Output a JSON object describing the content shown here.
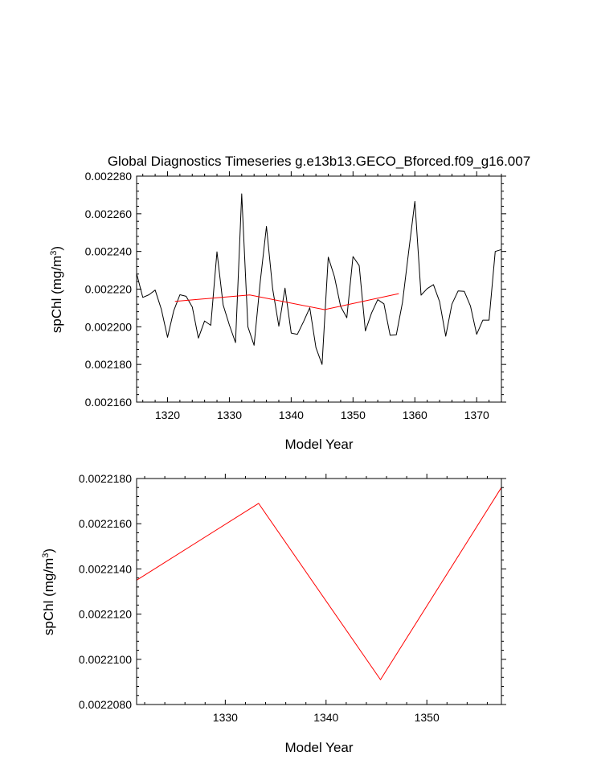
{
  "chart_data": [
    {
      "type": "line",
      "title": "Global Diagnostics Timeseries g.e13b13.GECO_Bforced.f09_g16.007",
      "xlabel": "Model Year",
      "ylabel": "spChl (mg/m^3)",
      "ylabel_parts": {
        "base": "spChl (mg/m",
        "sup": "3",
        "end": ")"
      },
      "xlim": [
        1315,
        1374
      ],
      "ylim": [
        0.00216,
        0.00228
      ],
      "xticks": [
        1320,
        1330,
        1340,
        1350,
        1360,
        1370
      ],
      "xtick_labels": [
        "1320",
        "1330",
        "1340",
        "1350",
        "1360",
        "1370"
      ],
      "yticks": [
        0.00216,
        0.00218,
        0.0022,
        0.00222,
        0.00224,
        0.00226,
        0.00228
      ],
      "ytick_labels": [
        "0.002160",
        "0.002180",
        "0.002200",
        "0.002220",
        "0.002240",
        "0.002260",
        "0.002280"
      ],
      "series": [
        {
          "color": "#000000",
          "x": [
            1315,
            1316,
            1317,
            1318,
            1319,
            1320,
            1321,
            1322,
            1323,
            1324,
            1325,
            1326,
            1327,
            1328,
            1329,
            1330,
            1331,
            1332,
            1333,
            1334,
            1335,
            1336,
            1337,
            1338,
            1339,
            1340,
            1341,
            1342,
            1343,
            1344,
            1345,
            1346,
            1347,
            1348,
            1349,
            1350,
            1351,
            1352,
            1353,
            1354,
            1355,
            1356,
            1357,
            1358,
            1359,
            1360,
            1361,
            1362,
            1363,
            1364,
            1365,
            1366,
            1367,
            1368,
            1369,
            1370,
            1371,
            1372,
            1373,
            1374
          ],
          "y": [
            0.0022283,
            0.0022156,
            0.002217,
            0.0022195,
            0.0022093,
            0.0021944,
            0.0022085,
            0.002217,
            0.0022162,
            0.0022105,
            0.002194,
            0.0022031,
            0.0022008,
            0.0022398,
            0.0022116,
            0.002201,
            0.0021916,
            0.0022706,
            0.0022,
            0.0021902,
            0.002224,
            0.0022533,
            0.0022202,
            0.0022003,
            0.0022205,
            0.0021967,
            0.002196,
            0.0022028,
            0.0022101,
            0.0021889,
            0.00218,
            0.002237,
            0.0022266,
            0.0022108,
            0.0022048,
            0.0022373,
            0.0022325,
            0.0021978,
            0.0022073,
            0.0022144,
            0.0022122,
            0.0021955,
            0.0021957,
            0.002213,
            0.00224,
            0.0022666,
            0.0022168,
            0.0022203,
            0.0022224,
            0.0022133,
            0.002195,
            0.002212,
            0.002219,
            0.0022188,
            0.002211,
            0.002196,
            0.0022035,
            0.0022035,
            0.00224,
            0.002241
          ]
        },
        {
          "color": "#ff0000",
          "x": [
            1321.2,
            1333.3,
            1345.4,
            1357.4
          ],
          "y": [
            0.0022135,
            0.0022169,
            0.0022091,
            0.0022176
          ]
        }
      ]
    },
    {
      "type": "line",
      "title": "",
      "xlabel": "Model Year",
      "ylabel": "spChl (mg/m^3)",
      "ylabel_parts": {
        "base": "spChl (mg/m",
        "sup": "3",
        "end": ")"
      },
      "xlim": [
        1321.2,
        1357.4
      ],
      "ylim": [
        0.002208,
        0.002218
      ],
      "xticks": [
        1330,
        1340,
        1350
      ],
      "xtick_labels": [
        "1330",
        "1340",
        "1350"
      ],
      "yticks": [
        0.002208,
        0.00221,
        0.002212,
        0.002214,
        0.002216,
        0.002218
      ],
      "ytick_labels": [
        "0.0022080",
        "0.0022100",
        "0.0022120",
        "0.0022140",
        "0.0022160",
        "0.0022180"
      ],
      "series": [
        {
          "color": "#ff0000",
          "x": [
            1321.2,
            1333.3,
            1345.4,
            1357.4
          ],
          "y": [
            0.0022135,
            0.0022169,
            0.0022091,
            0.0022176
          ]
        }
      ]
    }
  ]
}
